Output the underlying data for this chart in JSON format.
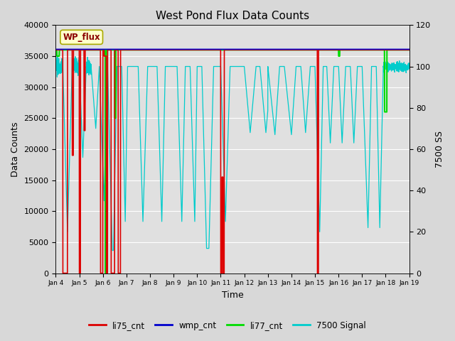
{
  "title": "West Pond Flux Data Counts",
  "xlabel": "Time",
  "ylabel_left": "Data Counts",
  "ylabel_right": "7500 SS",
  "annotation_text": "WP_flux",
  "ylim_left": [
    0,
    40000
  ],
  "ylim_right": [
    0,
    120
  ],
  "xlim": [
    0,
    15
  ],
  "x_tick_labels": [
    "Jan 4",
    "Jan 5",
    "Jan 6",
    "Jan 7",
    "Jan 8",
    "Jan 9",
    "Jan 10",
    "Jan 11",
    "Jan 12",
    "Jan 13",
    "Jan 14",
    "Jan 15",
    "Jan 16",
    "Jan 17",
    "Jan 18",
    "Jan 19"
  ],
  "background_color": "#d8d8d8",
  "plot_bg_color": "#e0e0e0",
  "li77_cnt_color": "#00dd00",
  "li75_cnt_color": "#dd0000",
  "wmp_cnt_color": "#0000cc",
  "signal_7500_color": "#00cccc",
  "legend_entries": [
    "li75_cnt",
    "wmp_cnt",
    "li77_cnt",
    "7500 Signal"
  ],
  "legend_colors": [
    "#dd0000",
    "#0000cc",
    "#00dd00",
    "#00cccc"
  ]
}
